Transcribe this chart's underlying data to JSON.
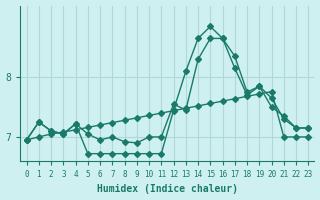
{
  "xlabel": "Humidex (Indice chaleur)",
  "bg_color": "#cff0f0",
  "grid_color": "#b0d8d8",
  "line_color": "#1a7a6a",
  "x": [
    0,
    1,
    2,
    3,
    4,
    5,
    6,
    7,
    8,
    9,
    10,
    11,
    12,
    13,
    14,
    15,
    16,
    17,
    18,
    19,
    20,
    21,
    22,
    23
  ],
  "series1": [
    6.95,
    7.25,
    7.1,
    7.05,
    7.22,
    7.05,
    6.95,
    7.0,
    6.92,
    6.9,
    7.0,
    7.0,
    7.55,
    7.45,
    8.3,
    8.65,
    8.65,
    8.35,
    7.75,
    7.85,
    7.65,
    7.3,
    7.15,
    7.15
  ],
  "series2": [
    6.95,
    7.25,
    7.1,
    7.05,
    7.22,
    6.72,
    6.72,
    6.72,
    6.72,
    6.72,
    6.72,
    6.72,
    7.45,
    8.1,
    8.65,
    8.85,
    8.65,
    8.15,
    7.7,
    7.85,
    7.5,
    7.35,
    7.15,
    7.15
  ],
  "series3": [
    6.95,
    7.0,
    7.05,
    7.08,
    7.12,
    7.16,
    7.2,
    7.24,
    7.28,
    7.32,
    7.36,
    7.4,
    7.44,
    7.48,
    7.52,
    7.56,
    7.6,
    7.64,
    7.68,
    7.72,
    7.76,
    7.0,
    7.0,
    7.0
  ],
  "ylim": [
    6.6,
    9.2
  ],
  "yticks": [
    7.0,
    8.0
  ],
  "xticks": [
    0,
    1,
    2,
    3,
    4,
    5,
    6,
    7,
    8,
    9,
    10,
    11,
    12,
    13,
    14,
    15,
    16,
    17,
    18,
    19,
    20,
    21,
    22,
    23
  ]
}
